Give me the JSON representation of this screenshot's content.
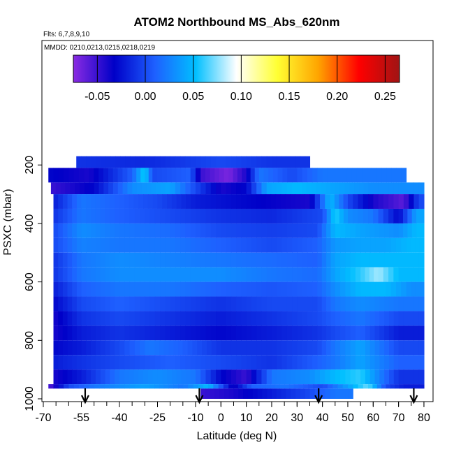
{
  "chart_data": {
    "type": "heatmap",
    "title": "ATOM2 Northbound MS_Abs_620nm",
    "annotations": [
      "Flts: 6,7,8,9,10",
      "MMDD: 0210,0213,0215,0218,0219"
    ],
    "xlabel": "Latitude (deg N)",
    "ylabel": "PSXC (mbar)",
    "xlim": [
      -70,
      85
    ],
    "ylim": [
      1000,
      0
    ],
    "x_ticks": [
      -70,
      -55,
      -40,
      -25,
      -10,
      0,
      10,
      20,
      30,
      40,
      50,
      60,
      70,
      80
    ],
    "x_tick_labels": [
      "-70",
      "-55",
      "-40",
      "-25",
      "-10",
      "0",
      "10",
      "20",
      "30",
      "40",
      "50",
      "60",
      "70",
      "80"
    ],
    "y_ticks": [
      200,
      400,
      600,
      800,
      1000
    ],
    "y_tick_labels": [
      "200",
      "400",
      "600",
      "800",
      "1000"
    ],
    "colorbar": {
      "range": [
        -0.075,
        0.265
      ],
      "ticks": [
        -0.05,
        0.0,
        0.05,
        0.1,
        0.15,
        0.2,
        0.25
      ],
      "tick_labels": [
        "-0.05",
        "0.00",
        "0.05",
        "0.10",
        "0.15",
        "0.20",
        "0.25"
      ],
      "colors": [
        "#8a2be2",
        "#0000c8",
        "#1e60ff",
        "#00bfff",
        "#ffffff",
        "#ffff33",
        "#ffa500",
        "#ff0000",
        "#a01414"
      ]
    },
    "flight_markers_latitude": [
      -53.5,
      -8.5,
      38.5,
      76
    ],
    "cell_values_note": "",
    "layers": [
      {
        "p_top": 170,
        "p_bot": 210,
        "x_start": -57,
        "x_end": 35,
        "segments": [
          [
            -57,
            -0.01
          ],
          [
            -30,
            -0.015
          ],
          [
            0,
            0.0
          ],
          [
            20,
            -0.01
          ]
        ]
      },
      {
        "p_top": 210,
        "p_bot": 260,
        "x_start": -68,
        "x_end": 73,
        "segments": [
          [
            -68,
            -0.03
          ],
          [
            -52,
            -0.04
          ],
          [
            -35,
            0.01
          ],
          [
            -30,
            0.06
          ],
          [
            -27,
            0.0
          ],
          [
            -12,
            0.01
          ],
          [
            -8,
            -0.05
          ],
          [
            3,
            -0.07
          ],
          [
            10,
            -0.04
          ],
          [
            15,
            0.02
          ],
          [
            28,
            0.0
          ],
          [
            40,
            0.02
          ]
        ]
      },
      {
        "p_top": 260,
        "p_bot": 300,
        "x_start": -67,
        "x_end": 80,
        "segments": [
          [
            -67,
            -0.05
          ],
          [
            -50,
            -0.03
          ],
          [
            -35,
            0.03
          ],
          [
            -20,
            0.04
          ],
          [
            -10,
            0.0
          ],
          [
            0,
            -0.04
          ],
          [
            10,
            -0.03
          ],
          [
            18,
            0.04
          ],
          [
            30,
            0.05
          ],
          [
            45,
            0.04
          ],
          [
            60,
            0.03
          ],
          [
            70,
            0.03
          ]
        ]
      },
      {
        "p_top": 300,
        "p_bot": 350,
        "x_start": -66,
        "x_end": 80,
        "segments": [
          [
            -66,
            -0.02
          ],
          [
            -55,
            0.02
          ],
          [
            -40,
            0.01
          ],
          [
            -25,
            0.0
          ],
          [
            -10,
            -0.02
          ],
          [
            10,
            -0.03
          ],
          [
            35,
            -0.04
          ],
          [
            43,
            0.05
          ],
          [
            50,
            0.0
          ],
          [
            60,
            -0.04
          ],
          [
            72,
            -0.06
          ],
          [
            78,
            0.0
          ]
        ]
      },
      {
        "p_top": 350,
        "p_bot": 400,
        "x_start": -66,
        "x_end": 80,
        "segments": [
          [
            -66,
            -0.01
          ],
          [
            -55,
            0.02
          ],
          [
            -40,
            0.01
          ],
          [
            -20,
            0.0
          ],
          [
            0,
            -0.01
          ],
          [
            20,
            -0.015
          ],
          [
            40,
            0.0
          ],
          [
            45,
            0.06
          ],
          [
            50,
            0.03
          ],
          [
            60,
            0.02
          ],
          [
            70,
            -0.03
          ],
          [
            77,
            0.04
          ]
        ]
      },
      {
        "p_top": 400,
        "p_bot": 450,
        "x_start": -66,
        "x_end": 80,
        "segments": [
          [
            -66,
            0.0
          ],
          [
            -55,
            0.03
          ],
          [
            -40,
            0.02
          ],
          [
            -20,
            0.015
          ],
          [
            0,
            0.0
          ],
          [
            20,
            -0.005
          ],
          [
            38,
            0.0
          ],
          [
            45,
            0.05
          ],
          [
            55,
            0.04
          ],
          [
            70,
            0.03
          ],
          [
            77,
            0.05
          ]
        ]
      },
      {
        "p_top": 450,
        "p_bot": 500,
        "x_start": -66,
        "x_end": 80,
        "segments": [
          [
            -66,
            0.0
          ],
          [
            -55,
            0.025
          ],
          [
            -40,
            0.02
          ],
          [
            -20,
            0.02
          ],
          [
            0,
            0.01
          ],
          [
            20,
            0.0
          ],
          [
            38,
            0.01
          ],
          [
            45,
            0.035
          ],
          [
            55,
            0.04
          ],
          [
            65,
            0.04
          ],
          [
            75,
            0.05
          ]
        ]
      },
      {
        "p_top": 500,
        "p_bot": 550,
        "x_start": -66,
        "x_end": 80,
        "segments": [
          [
            -66,
            -0.01
          ],
          [
            -55,
            0.02
          ],
          [
            -40,
            0.03
          ],
          [
            -20,
            0.025
          ],
          [
            0,
            0.02
          ],
          [
            20,
            0.015
          ],
          [
            38,
            0.01
          ],
          [
            45,
            0.04
          ],
          [
            55,
            0.05
          ],
          [
            70,
            0.05
          ]
        ]
      },
      {
        "p_top": 550,
        "p_bot": 600,
        "x_start": -66,
        "x_end": 80,
        "segments": [
          [
            -66,
            -0.01
          ],
          [
            -55,
            0.02
          ],
          [
            -40,
            0.03
          ],
          [
            -20,
            0.03
          ],
          [
            0,
            0.03
          ],
          [
            20,
            0.02
          ],
          [
            38,
            0.015
          ],
          [
            45,
            0.04
          ],
          [
            55,
            0.06
          ],
          [
            62,
            0.08
          ],
          [
            70,
            0.05
          ]
        ]
      },
      {
        "p_top": 600,
        "p_bot": 650,
        "x_start": -66,
        "x_end": 80,
        "segments": [
          [
            -66,
            -0.02
          ],
          [
            -55,
            0.01
          ],
          [
            -40,
            0.02
          ],
          [
            -20,
            0.02
          ],
          [
            0,
            0.01
          ],
          [
            20,
            0.005
          ],
          [
            38,
            0.01
          ],
          [
            45,
            0.03
          ],
          [
            55,
            0.05
          ],
          [
            65,
            0.05
          ],
          [
            75,
            0.03
          ]
        ]
      },
      {
        "p_top": 650,
        "p_bot": 700,
        "x_start": -66,
        "x_end": 80,
        "segments": [
          [
            -66,
            -0.03
          ],
          [
            -55,
            0.0
          ],
          [
            -40,
            0.01
          ],
          [
            -20,
            0.0
          ],
          [
            0,
            -0.01
          ],
          [
            20,
            0.0
          ],
          [
            38,
            0.0
          ],
          [
            45,
            0.02
          ],
          [
            55,
            0.03
          ],
          [
            70,
            0.02
          ]
        ]
      },
      {
        "p_top": 700,
        "p_bot": 750,
        "x_start": -66,
        "x_end": 80,
        "segments": [
          [
            -66,
            -0.04
          ],
          [
            -55,
            -0.01
          ],
          [
            -40,
            0.0
          ],
          [
            -20,
            -0.01
          ],
          [
            0,
            -0.02
          ],
          [
            20,
            -0.01
          ],
          [
            38,
            0.0
          ],
          [
            45,
            0.01
          ],
          [
            55,
            0.02
          ],
          [
            70,
            0.0
          ]
        ]
      },
      {
        "p_top": 750,
        "p_bot": 800,
        "x_start": -66,
        "x_end": 80,
        "segments": [
          [
            -66,
            -0.04
          ],
          [
            -55,
            -0.02
          ],
          [
            -40,
            -0.01
          ],
          [
            -20,
            -0.02
          ],
          [
            0,
            -0.03
          ],
          [
            20,
            -0.02
          ],
          [
            38,
            -0.01
          ],
          [
            45,
            0.0
          ],
          [
            55,
            0.01
          ],
          [
            70,
            -0.02
          ]
        ]
      },
      {
        "p_top": 800,
        "p_bot": 850,
        "x_start": -66,
        "x_end": 80,
        "segments": [
          [
            -66,
            -0.03
          ],
          [
            -55,
            -0.02
          ],
          [
            -40,
            0.0
          ],
          [
            -28,
            0.02
          ],
          [
            -15,
            0.01
          ],
          [
            0,
            -0.01
          ],
          [
            20,
            -0.01
          ],
          [
            38,
            0.0
          ],
          [
            45,
            0.02
          ],
          [
            55,
            0.04
          ],
          [
            70,
            0.0
          ]
        ]
      },
      {
        "p_top": 850,
        "p_bot": 900,
        "x_start": -66,
        "x_end": 80,
        "segments": [
          [
            -66,
            -0.02
          ],
          [
            -55,
            -0.01
          ],
          [
            -40,
            0.0
          ],
          [
            -20,
            0.01
          ],
          [
            0,
            0.0
          ],
          [
            20,
            -0.01
          ],
          [
            38,
            0.01
          ],
          [
            45,
            0.02
          ],
          [
            55,
            0.04
          ],
          [
            70,
            0.01
          ]
        ]
      },
      {
        "p_top": 900,
        "p_bot": 950,
        "x_start": -66,
        "x_end": 80,
        "segments": [
          [
            -66,
            -0.04
          ],
          [
            -55,
            -0.02
          ],
          [
            -40,
            0.02
          ],
          [
            -25,
            0.03
          ],
          [
            -10,
            0.02
          ],
          [
            0,
            -0.03
          ],
          [
            10,
            -0.05
          ],
          [
            20,
            0.02
          ],
          [
            35,
            0.03
          ],
          [
            45,
            0.05
          ],
          [
            55,
            0.06
          ],
          [
            70,
            -0.01
          ]
        ]
      },
      {
        "p_top": 950,
        "p_bot": 965,
        "x_start": -68,
        "x_end": 80,
        "segments": [
          [
            -68,
            -0.06
          ],
          [
            -60,
            0.0
          ],
          [
            -50,
            0.02
          ],
          [
            -30,
            0.04
          ],
          [
            -15,
            0.02
          ],
          [
            -5,
            0.05
          ],
          [
            5,
            -0.04
          ],
          [
            12,
            0.01
          ],
          [
            25,
            0.02
          ],
          [
            40,
            0.0
          ],
          [
            50,
            0.04
          ],
          [
            58,
            0.07
          ],
          [
            65,
            0.0
          ],
          [
            72,
            -0.02
          ]
        ]
      },
      {
        "p_top": 965,
        "p_bot": 1000,
        "x_start": -8,
        "x_end": 52,
        "segments": [
          [
            -8,
            -0.05
          ],
          [
            5,
            -0.04
          ],
          [
            20,
            -0.02
          ],
          [
            35,
            0.0
          ],
          [
            45,
            0.02
          ]
        ]
      }
    ]
  }
}
